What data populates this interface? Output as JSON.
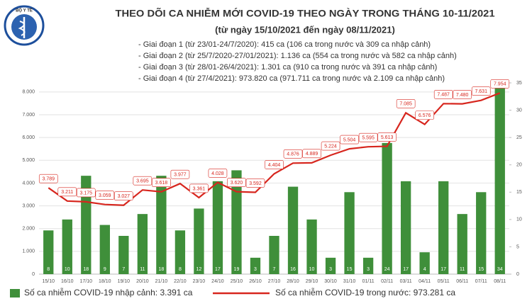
{
  "chart_data": {
    "type": "combo",
    "logo_text": "BỘ Y TẾ",
    "title": "THEO DÕI CA NHIỄM MỚI COVID-19 THEO NGÀY TRONG THÁNG 10-11/2021",
    "subtitle": "(từ ngày 15/10/2021 đến ngày 08/11/2021)",
    "notes": [
      "- Giai đoạn 1 (từ 23/01-24/7/2020): 415 ca (106 ca trong nước và 309 ca nhập cảnh)",
      "- Giai đoạn 2 (từ 25/7/2020-27/01/2021): 1.136 ca (554 ca trong nước và 582 ca nhập cảnh)",
      "- Giai đoạn 3 (từ 28/01-26/4/2021): 1.301 ca (910 ca trong nước và 391 ca nhập cảnh)",
      "- Giai đoạn 4 (từ 27/4/2021): 973.820 ca (971.711 ca trong nước và 2.109 ca nhập cảnh)"
    ],
    "categories": [
      "15/10",
      "16/10",
      "17/10",
      "18/10",
      "19/10",
      "20/10",
      "21/10",
      "22/10",
      "23/10",
      "24/10",
      "25/10",
      "26/10",
      "27/10",
      "28/10",
      "29/10",
      "30/10",
      "31/10",
      "01/11",
      "02/11",
      "03/11",
      "04/11",
      "05/11",
      "06/11",
      "07/11",
      "08/11"
    ],
    "series": [
      {
        "name": "Số ca nhiễm COVID-19 nhập cảnh: 3.391 ca",
        "type": "bar",
        "axis": "y2",
        "color": "#3f8f3a",
        "values": [
          8,
          10,
          18,
          9,
          7,
          11,
          18,
          8,
          12,
          17,
          19,
          3,
          7,
          16,
          10,
          3,
          15,
          3,
          24,
          17,
          4,
          17,
          11,
          15,
          34
        ]
      },
      {
        "name": "Số ca nhiễm COVID-19 trong nước: 973.281 ca",
        "type": "line",
        "axis": "y",
        "color": "#d7261e",
        "values": [
          3789,
          3211,
          3175,
          3059,
          3027,
          3695,
          3618,
          3977,
          3361,
          4028,
          3620,
          3592,
          4404,
          4876,
          4889,
          5224,
          5504,
          5595,
          5613,
          7085,
          6576,
          7487,
          7480,
          7631,
          7954
        ],
        "value_labels": [
          "3.789",
          "3.211",
          "3.175",
          "3.059",
          "3.027",
          "3.695",
          "3.618",
          "3.977",
          "3.361",
          "4.028",
          "3.620",
          "3.592",
          "4.404",
          "4.876",
          "4.889",
          "5.224",
          "5.504",
          "5.595",
          "5.613",
          "7.085",
          "6.576",
          "7.487",
          "7.480",
          "7.631",
          "7.954"
        ]
      }
    ],
    "ylim": [
      0,
      8400
    ],
    "yticks": [
      0,
      {
        "value": 1000,
        "label": "1.000"
      },
      {
        "value": 2000,
        "label": "2.000"
      },
      {
        "value": 3000,
        "label": "3.000"
      },
      {
        "value": 4000,
        "label": "4.000"
      },
      {
        "value": 5000,
        "label": "5.000"
      },
      {
        "value": 6000,
        "label": "6.000"
      },
      {
        "value": 7000,
        "label": "7.000"
      },
      {
        "value": 8000,
        "label": "8.000"
      }
    ],
    "y2lim": [
      0,
      35
    ],
    "y2ticks": [
      0,
      5,
      10,
      15,
      20,
      25,
      30,
      35
    ],
    "grid": true
  }
}
